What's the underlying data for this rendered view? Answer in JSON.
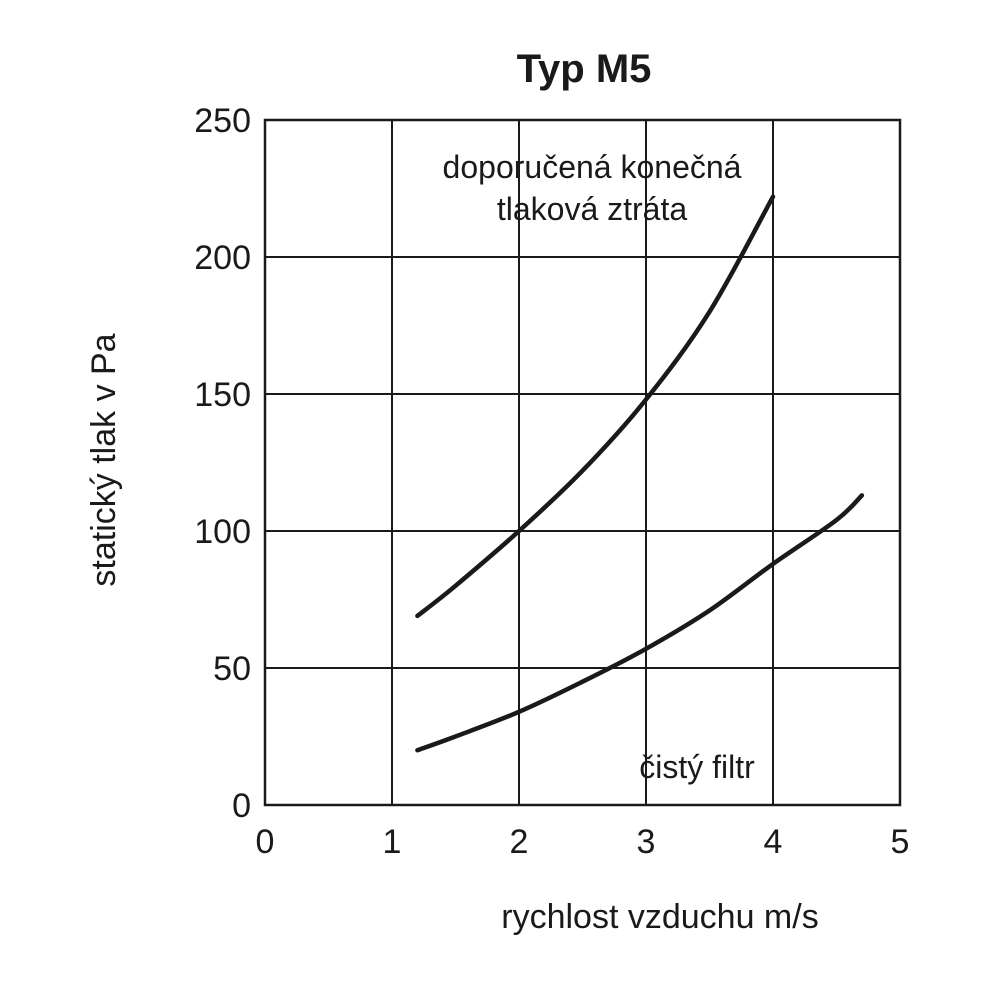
{
  "chart_data": {
    "type": "line",
    "title": "Typ M5",
    "xlabel": "rychlost vzduchu m/s",
    "ylabel": "statický tlak v Pa",
    "xlim": [
      0,
      5
    ],
    "ylim": [
      0,
      250
    ],
    "xticks": [
      0,
      1,
      2,
      3,
      4,
      5
    ],
    "yticks": [
      0,
      50,
      100,
      150,
      200,
      250
    ],
    "grid": true,
    "series": [
      {
        "name": "doporučená konečná tlaková ztráta",
        "x": [
          1.2,
          1.5,
          2.0,
          2.5,
          3.0,
          3.5,
          4.0
        ],
        "y": [
          69,
          80,
          100,
          122,
          148,
          180,
          222
        ]
      },
      {
        "name": "čistý filtr",
        "x": [
          1.2,
          1.5,
          2.0,
          2.5,
          3.0,
          3.5,
          4.0,
          4.5,
          4.7
        ],
        "y": [
          20,
          25,
          34,
          45,
          57,
          71,
          88,
          104,
          113
        ]
      }
    ],
    "annotations": [
      {
        "lines": [
          "doporučená konečná",
          "tlaková ztráta"
        ],
        "series": 0
      },
      {
        "lines": [
          "čistý filtr"
        ],
        "series": 1
      }
    ]
  }
}
